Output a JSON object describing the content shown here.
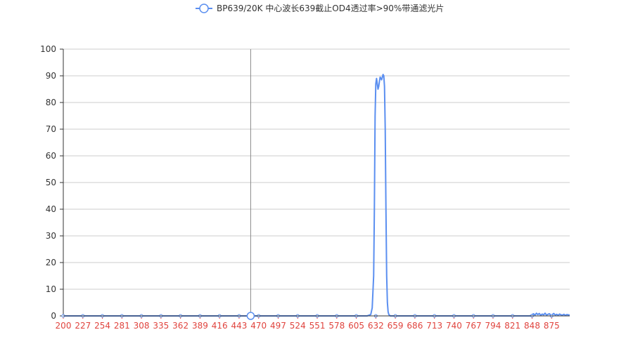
{
  "chart_data": {
    "type": "line",
    "legend": {
      "placement": "top-center"
    },
    "series": [
      {
        "name": "BP639/20K 中心波长639截止OD4透过率>90%带通滤光片",
        "color": "#5b8ff0",
        "x": [
          200,
          560,
          600,
          620,
          625,
          627,
          629,
          630,
          631,
          632,
          633,
          634,
          635,
          636,
          637,
          638,
          639,
          640,
          641,
          642,
          643,
          644,
          645,
          646,
          647,
          648,
          649,
          650,
          652,
          655,
          700,
          840,
          845,
          848,
          850,
          852,
          854,
          856,
          858,
          860,
          862,
          864,
          866,
          868,
          870,
          872,
          874,
          876,
          878,
          880,
          882,
          884,
          886,
          888,
          890,
          892,
          894,
          896,
          898,
          900
        ],
        "values": [
          0,
          0,
          0,
          0,
          0.5,
          3,
          15,
          40,
          75,
          87,
          89,
          87,
          85,
          86,
          88,
          89.5,
          89,
          88.5,
          89.5,
          90.5,
          90,
          86,
          70,
          40,
          15,
          5,
          1.5,
          0.5,
          0,
          0,
          0,
          0,
          0,
          0.5,
          0.8,
          0.3,
          1,
          0.5,
          0.9,
          0.2,
          0.7,
          0.4,
          1,
          0.3,
          0.6,
          0.8,
          0.2,
          0.5,
          0.9,
          0.3,
          0.6,
          0.2,
          0.7,
          0.4,
          0.3,
          0.6,
          0.2,
          0.5,
          0.4,
          0.3
        ]
      }
    ],
    "xaxis": {
      "min": 200,
      "max": 900,
      "ticks": [
        200,
        227,
        254,
        281,
        308,
        335,
        362,
        389,
        416,
        443,
        470,
        497,
        524,
        551,
        578,
        605,
        632,
        659,
        686,
        713,
        740,
        767,
        794,
        821,
        848,
        875
      ],
      "tick_color": "#e0443e"
    },
    "yaxis": {
      "min": 0,
      "max": 100,
      "ticks": [
        0,
        10,
        20,
        30,
        40,
        50,
        60,
        70,
        80,
        90,
        100
      ]
    },
    "grid": true,
    "hover": {
      "x": 459,
      "y": 0
    }
  }
}
